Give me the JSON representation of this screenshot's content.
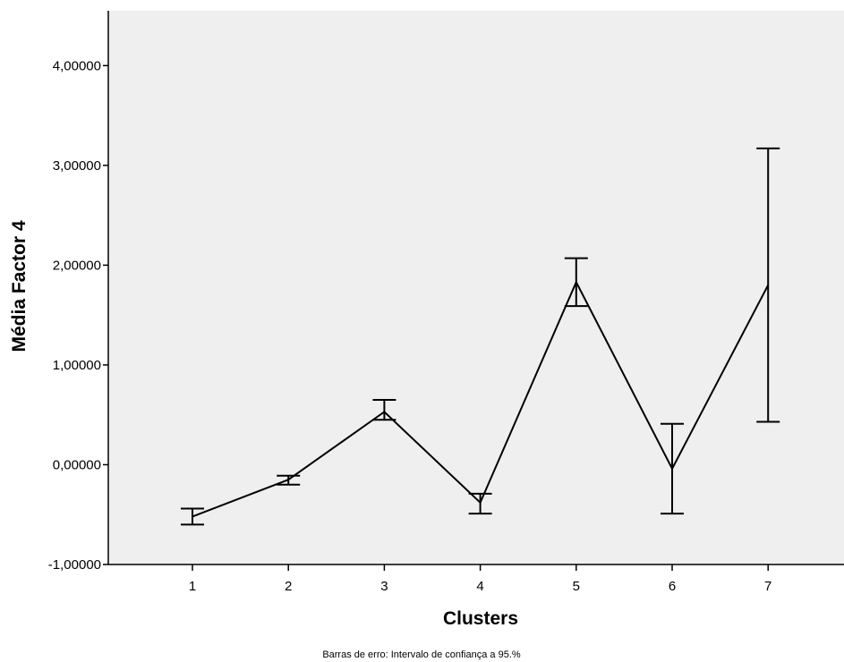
{
  "chart_data": {
    "type": "line",
    "title": "",
    "xlabel": "Clusters",
    "ylabel": "Média Factor 4",
    "footnote": "Barras de erro: Intervalo de confiança a 95.%",
    "categories": [
      "1",
      "2",
      "3",
      "4",
      "5",
      "6",
      "7"
    ],
    "series": [
      {
        "values": [
          -0.52,
          -0.15,
          0.53,
          -0.38,
          1.83,
          -0.04,
          1.8
        ],
        "ci_low": [
          -0.6,
          -0.2,
          0.45,
          -0.49,
          1.59,
          -0.49,
          0.43
        ],
        "ci_high": [
          -0.44,
          -0.11,
          0.65,
          -0.29,
          2.07,
          0.41,
          3.17
        ]
      }
    ],
    "ylim": [
      -1.0,
      4.55
    ],
    "yticks": [
      -1,
      0,
      1,
      2,
      3,
      4
    ],
    "ytick_labels": [
      "-1,00000",
      "0,00000",
      "1,00000",
      "2,00000",
      "3,00000",
      "4,00000"
    ],
    "grid": false,
    "colors": {
      "plot_background": "#efefef",
      "line": "#000000"
    }
  }
}
